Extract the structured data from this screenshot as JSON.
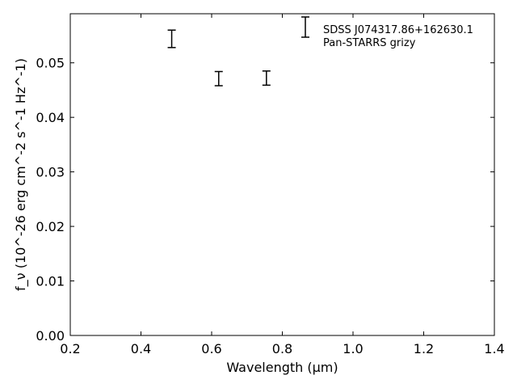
{
  "chart_data": {
    "type": "scatter",
    "title": "",
    "xlabel": "Wavelength (μm)",
    "ylabel": "f_ν (10^-26 erg cm^-2 s^-1 Hz^-1)",
    "xlim": [
      0.2,
      1.4
    ],
    "ylim": [
      0.0,
      0.059
    ],
    "xticks": [
      0.2,
      0.4,
      0.6,
      0.8,
      1.0,
      1.2,
      1.4
    ],
    "xtick_labels": [
      "0.2",
      "0.4",
      "0.6",
      "0.8",
      "1.0",
      "1.2",
      "1.4"
    ],
    "yticks": [
      0.0,
      0.01,
      0.02,
      0.03,
      0.04,
      0.05
    ],
    "ytick_labels": [
      "0.00",
      "0.01",
      "0.02",
      "0.03",
      "0.04",
      "0.05"
    ],
    "grid": false,
    "legend_position": "top-right",
    "legend_text": [
      "SDSS J074317.86+162630.1",
      "Pan-STARRS grizy"
    ],
    "series": [
      {
        "name": "Pan-STARRS grizy",
        "marker": "errorbar",
        "color": "#000000",
        "x": [
          0.487,
          0.62,
          0.755
        ],
        "y": [
          0.0544,
          0.0471,
          0.0472
        ],
        "yerr": [
          0.0016,
          0.0013,
          0.0013
        ]
      }
    ]
  }
}
